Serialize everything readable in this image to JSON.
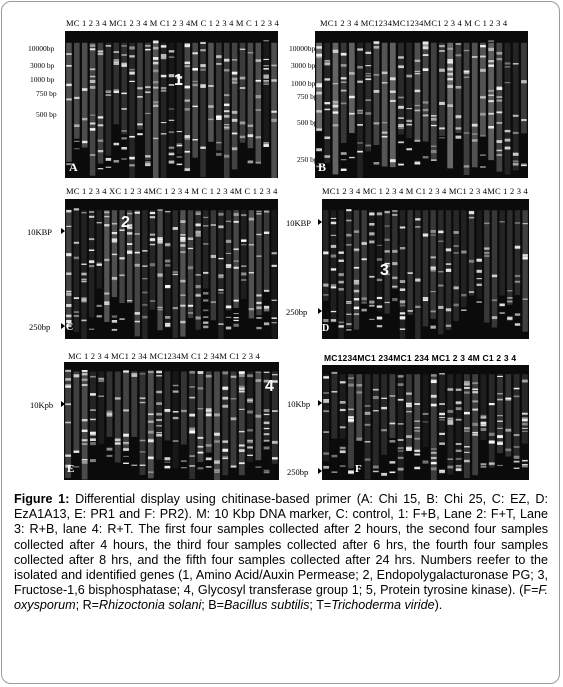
{
  "panels": {
    "A": {
      "letter": "A",
      "lanes_header": "MC 1 2 3  4 MC1 2 3 4 M C1 2 3 4M  C  1 2 3  4 M C 1 2 3  4",
      "size_labels": [
        "10000bp",
        "3000 bp",
        "1000 bp",
        "750 bp",
        "500 bp"
      ],
      "annotation": "1"
    },
    "B": {
      "letter": "B",
      "lanes_header": "MC1 2 3  4 MC1234MC1234MC1 2 3 4 M C  1 2 3  4",
      "size_labels": [
        "10000bp",
        "3000 bp",
        "1000 bp",
        "750 bp",
        "500 bp",
        "250 bp"
      ]
    },
    "C": {
      "letter": "C",
      "lanes_header": "MC  1 2 3 4 XC 1 2 3 4MC 1 2 3 4 M  C 1 2 3 4M C  1 2 3  4",
      "size_labels": [
        "10KBP",
        "250bp"
      ],
      "annotation": "2"
    },
    "D": {
      "letter": "D",
      "lanes_header": "MC1 2 3 4 MC 1 2 3 4 M C1 2 3 4  MC1 2 3 4MC 1 2 3  4",
      "size_labels": [
        "10KBP",
        "250bp"
      ],
      "annotation": "3"
    },
    "E": {
      "letter": "E",
      "lanes_header": "MC 1 2 3  4 MC1 2 34 MC1234M C1 2   34M C1 2 3  4",
      "size_labels": [
        "10Kpb",
        "250bp"
      ],
      "annotation": "4"
    },
    "F": {
      "letter": "F",
      "lanes_header": "MC1234MC1 234MC1 234 MC1 2 3 4M C1 2  3  4",
      "size_labels": [
        "10Kbp",
        "250bp"
      ]
    }
  },
  "caption": {
    "label": "Figure 1:",
    "body": " Differential display using chitinase-based primer (A: Chi 15, B: Chi 25, C: EZ, D: EzA1A13, E: PR1 and F: PR2).  M: 10 Kbp DNA marker, C: control, 1: F+B, Lane 2: F+T, Lane 3: R+B, lane 4: R+T.  The first four samples collected after 2 hours, the second four samples collected after 4 hours, the third four samples collected after 6 hrs, the fourth four samples collected after 8 hrs, and the fifth four samples collected after 24 hrs. Numbers reefer to the isolated and identified genes (1, Amino Acid/Auxin Permease; 2, Endopolygalacturonase PG; 3, Fructose-1,6 bisphosphatase; 4, Glycosyl transferase group 1; 5, Protein tyrosine kinase). (F=",
    "f_species": "F. oxysporum",
    "sep1": "; R=",
    "r_species": "Rhizoctonia solani",
    "sep2": "; B=",
    "b_species": "Bacillus subtilis",
    "sep3": "; T=",
    "t_species": "Trichoderma viride",
    "end": ")."
  }
}
